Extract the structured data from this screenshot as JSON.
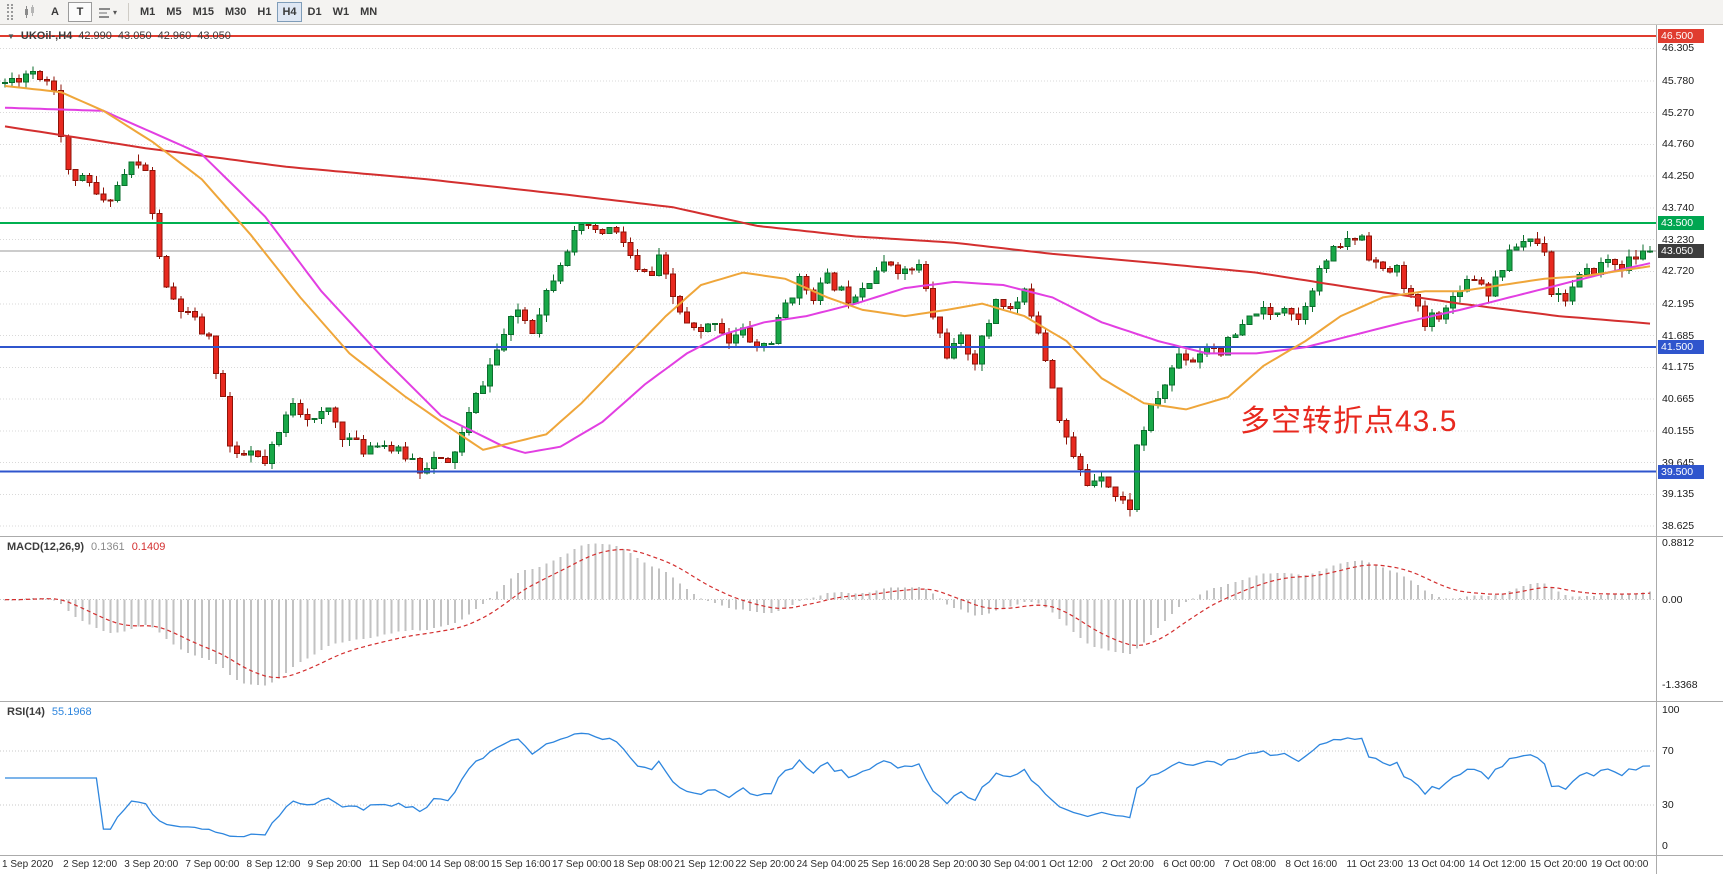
{
  "toolbar": {
    "tool_a": "A",
    "tool_t": "T",
    "timeframes": [
      "M1",
      "M5",
      "M15",
      "M30",
      "H1",
      "H4",
      "D1",
      "W1",
      "MN"
    ],
    "active_timeframe": "H4"
  },
  "chart_header": {
    "symbol": "UKOil-,H4",
    "open": "42.990",
    "high": "43.050",
    "low": "42.960",
    "close": "43.050"
  },
  "price_axis": {
    "ticks": [
      "46.305",
      "45.780",
      "45.270",
      "44.760",
      "44.250",
      "43.740",
      "43.230",
      "42.720",
      "42.195",
      "41.685",
      "41.175",
      "40.665",
      "40.155",
      "39.645",
      "39.135",
      "38.625"
    ],
    "badges": [
      {
        "label": "46.500",
        "price": 46.5,
        "color": "#e03c2f"
      },
      {
        "label": "43.500",
        "price": 43.5,
        "color": "#00a651"
      },
      {
        "label": "43.050",
        "price": 43.05,
        "color": "#3c3c3c"
      },
      {
        "label": "41.500",
        "price": 41.5,
        "color": "#2f55cd"
      },
      {
        "label": "39.500",
        "price": 39.5,
        "color": "#2f55cd"
      }
    ]
  },
  "levels": [
    {
      "price": 46.5,
      "color": "#e03c2f",
      "width": 2
    },
    {
      "price": 43.5,
      "color": "#00b050",
      "width": 2
    },
    {
      "price": 41.5,
      "color": "#2f55cd",
      "width": 2
    },
    {
      "price": 39.5,
      "color": "#2f55cd",
      "width": 2
    }
  ],
  "current_price": {
    "label": "43.050",
    "value": 43.05,
    "line_color": "#9a9a9a"
  },
  "annotation": {
    "text": "多空转折点43.5",
    "color": "#e8291f"
  },
  "macd": {
    "label": "MACD(12,26,9)",
    "value_main": "0.1361",
    "value_signal": "0.1409",
    "axis": [
      {
        "label": "0.8812",
        "value": 0.8812
      },
      {
        "label": "0.00",
        "value": 0
      },
      {
        "label": "-1.3368",
        "value": -1.3368
      }
    ]
  },
  "rsi": {
    "label": "RSI(14)",
    "value": "55.1968",
    "axis": [
      {
        "label": "100",
        "value": 100
      },
      {
        "label": "70",
        "value": 70
      },
      {
        "label": "30",
        "value": 30
      },
      {
        "label": "0",
        "value": 0
      }
    ],
    "levels": [
      70,
      30
    ]
  },
  "time_axis": [
    "1 Sep 2020",
    "2 Sep 12:00",
    "3 Sep 20:00",
    "7 Sep 00:00",
    "8 Sep 12:00",
    "9 Sep 20:00",
    "11 Sep 04:00",
    "14 Sep 08:00",
    "15 Sep 16:00",
    "17 Sep 00:00",
    "18 Sep 08:00",
    "21 Sep 12:00",
    "22 Sep 20:00",
    "24 Sep 04:00",
    "25 Sep 16:00",
    "28 Sep 20:00",
    "30 Sep 04:00",
    "1 Oct 12:00",
    "2 Oct 20:00",
    "6 Oct 00:00",
    "7 Oct 08:00",
    "8 Oct 16:00",
    "11 Oct 23:00",
    "13 Oct 04:00",
    "14 Oct 12:00",
    "15 Oct 20:00",
    "19 Oct 00:00"
  ],
  "chart_data": {
    "type": "candlestick",
    "symbol": "UKOil-",
    "timeframe": "H4",
    "bars": 235,
    "seed": 11,
    "noise": 0.1,
    "wick": 0.12,
    "price_path": [
      [
        0,
        45.75
      ],
      [
        2,
        45.85
      ],
      [
        4,
        45.95
      ],
      [
        6,
        45.8
      ],
      [
        7,
        45.7
      ],
      [
        8,
        44.9
      ],
      [
        9,
        44.3
      ],
      [
        12,
        44.1
      ],
      [
        14,
        43.8
      ],
      [
        16,
        44.1
      ],
      [
        18,
        44.45
      ],
      [
        20,
        44.35
      ],
      [
        21,
        43.6
      ],
      [
        23,
        42.4
      ],
      [
        25,
        42.1
      ],
      [
        27,
        41.9
      ],
      [
        29,
        41.6
      ],
      [
        31,
        40.7
      ],
      [
        32,
        39.9
      ],
      [
        33,
        39.7
      ],
      [
        35,
        39.8
      ],
      [
        37,
        39.6
      ],
      [
        39,
        40.1
      ],
      [
        41,
        40.65
      ],
      [
        42,
        40.5
      ],
      [
        44,
        40.3
      ],
      [
        46,
        40.5
      ],
      [
        48,
        40.1
      ],
      [
        51,
        39.85
      ],
      [
        53,
        40.0
      ],
      [
        56,
        39.8
      ],
      [
        58,
        39.7
      ],
      [
        59,
        39.55
      ],
      [
        61,
        39.7
      ],
      [
        63,
        39.6
      ],
      [
        65,
        40.1
      ],
      [
        67,
        40.7
      ],
      [
        69,
        41.2
      ],
      [
        71,
        41.7
      ],
      [
        73,
        42.1
      ],
      [
        75,
        41.8
      ],
      [
        77,
        42.4
      ],
      [
        79,
        42.9
      ],
      [
        81,
        43.3
      ],
      [
        83,
        43.45
      ],
      [
        84,
        43.3
      ],
      [
        86,
        43.4
      ],
      [
        88,
        43.2
      ],
      [
        90,
        42.7
      ],
      [
        92,
        42.65
      ],
      [
        93,
        42.9
      ],
      [
        95,
        42.3
      ],
      [
        97,
        41.85
      ],
      [
        99,
        41.7
      ],
      [
        101,
        41.95
      ],
      [
        103,
        41.6
      ],
      [
        105,
        41.75
      ],
      [
        107,
        41.5
      ],
      [
        109,
        41.6
      ],
      [
        111,
        42.2
      ],
      [
        113,
        42.55
      ],
      [
        115,
        42.35
      ],
      [
        117,
        42.6
      ],
      [
        120,
        42.3
      ],
      [
        122,
        42.5
      ],
      [
        124,
        42.75
      ],
      [
        126,
        42.85
      ],
      [
        128,
        42.7
      ],
      [
        130,
        42.8
      ],
      [
        132,
        42.0
      ],
      [
        134,
        41.4
      ],
      [
        136,
        41.6
      ],
      [
        138,
        41.3
      ],
      [
        140,
        41.9
      ],
      [
        141,
        42.3
      ],
      [
        143,
        42.1
      ],
      [
        145,
        42.35
      ],
      [
        147,
        41.8
      ],
      [
        149,
        40.9
      ],
      [
        150,
        40.4
      ],
      [
        152,
        39.7
      ],
      [
        154,
        39.3
      ],
      [
        156,
        39.5
      ],
      [
        158,
        39.1
      ],
      [
        159,
        39.0
      ],
      [
        160,
        38.95
      ],
      [
        161,
        39.9
      ],
      [
        163,
        40.5
      ],
      [
        165,
        40.9
      ],
      [
        167,
        41.4
      ],
      [
        169,
        41.3
      ],
      [
        171,
        41.55
      ],
      [
        173,
        41.45
      ],
      [
        176,
        41.8
      ],
      [
        178,
        42.1
      ],
      [
        180,
        42.0
      ],
      [
        182,
        42.2
      ],
      [
        184,
        41.95
      ],
      [
        186,
        42.5
      ],
      [
        188,
        42.9
      ],
      [
        190,
        43.15
      ],
      [
        193,
        43.3
      ],
      [
        194,
        43.0
      ],
      [
        196,
        42.7
      ],
      [
        198,
        42.75
      ],
      [
        200,
        42.3
      ],
      [
        202,
        41.85
      ],
      [
        203,
        42.0
      ],
      [
        205,
        42.1
      ],
      [
        207,
        42.5
      ],
      [
        209,
        42.65
      ],
      [
        211,
        42.4
      ],
      [
        213,
        42.8
      ],
      [
        215,
        43.15
      ],
      [
        217,
        43.25
      ],
      [
        219,
        43.1
      ],
      [
        220,
        42.4
      ],
      [
        222,
        42.3
      ],
      [
        224,
        42.6
      ],
      [
        226,
        42.75
      ],
      [
        228,
        42.9
      ],
      [
        230,
        42.8
      ],
      [
        232,
        42.95
      ],
      [
        234,
        43.05
      ]
    ],
    "ma_red": [
      [
        0,
        45.05
      ],
      [
        20,
        44.7
      ],
      [
        40,
        44.4
      ],
      [
        60,
        44.2
      ],
      [
        80,
        43.95
      ],
      [
        95,
        43.75
      ],
      [
        107,
        43.45
      ],
      [
        121,
        43.28
      ],
      [
        135,
        43.18
      ],
      [
        149,
        43.0
      ],
      [
        164,
        42.85
      ],
      [
        178,
        42.7
      ],
      [
        192,
        42.45
      ],
      [
        207,
        42.2
      ],
      [
        221,
        42.0
      ],
      [
        234,
        41.88
      ]
    ],
    "ma_magenta": [
      [
        0,
        45.35
      ],
      [
        14,
        45.3
      ],
      [
        28,
        44.6
      ],
      [
        37,
        43.6
      ],
      [
        45,
        42.4
      ],
      [
        54,
        41.3
      ],
      [
        62,
        40.4
      ],
      [
        71,
        39.9
      ],
      [
        74,
        39.8
      ],
      [
        79,
        39.9
      ],
      [
        85,
        40.3
      ],
      [
        91,
        40.9
      ],
      [
        97,
        41.4
      ],
      [
        102,
        41.7
      ],
      [
        108,
        41.9
      ],
      [
        114,
        42.0
      ],
      [
        121,
        42.2
      ],
      [
        128,
        42.45
      ],
      [
        135,
        42.55
      ],
      [
        142,
        42.5
      ],
      [
        149,
        42.3
      ],
      [
        156,
        41.9
      ],
      [
        164,
        41.6
      ],
      [
        171,
        41.4
      ],
      [
        178,
        41.4
      ],
      [
        185,
        41.5
      ],
      [
        192,
        41.7
      ],
      [
        199,
        41.9
      ],
      [
        207,
        42.1
      ],
      [
        214,
        42.3
      ],
      [
        221,
        42.5
      ],
      [
        228,
        42.7
      ],
      [
        234,
        42.85
      ]
    ],
    "ma_orange": [
      [
        0,
        45.7
      ],
      [
        8,
        45.6
      ],
      [
        14,
        45.3
      ],
      [
        21,
        44.8
      ],
      [
        28,
        44.2
      ],
      [
        35,
        43.3
      ],
      [
        42,
        42.3
      ],
      [
        49,
        41.4
      ],
      [
        57,
        40.7
      ],
      [
        64,
        40.15
      ],
      [
        68,
        39.85
      ],
      [
        77,
        40.1
      ],
      [
        82,
        40.6
      ],
      [
        88,
        41.3
      ],
      [
        94,
        42.0
      ],
      [
        99,
        42.5
      ],
      [
        105,
        42.7
      ],
      [
        111,
        42.6
      ],
      [
        117,
        42.3
      ],
      [
        122,
        42.1
      ],
      [
        128,
        42.0
      ],
      [
        134,
        42.1
      ],
      [
        139,
        42.2
      ],
      [
        145,
        42.0
      ],
      [
        151,
        41.6
      ],
      [
        156,
        41.0
      ],
      [
        162,
        40.6
      ],
      [
        168,
        40.5
      ],
      [
        174,
        40.7
      ],
      [
        179,
        41.2
      ],
      [
        185,
        41.6
      ],
      [
        190,
        42.0
      ],
      [
        196,
        42.3
      ],
      [
        202,
        42.4
      ],
      [
        207,
        42.4
      ],
      [
        213,
        42.5
      ],
      [
        219,
        42.6
      ],
      [
        225,
        42.65
      ],
      [
        234,
        42.8
      ]
    ],
    "colors": {
      "up": "#18a848",
      "up_border": "#0b6e2d",
      "down": "#e8291f",
      "down_border": "#8e1409",
      "ma_red": "#d32f2f",
      "ma_magenta": "#e23fe2",
      "ma_orange": "#efa63a",
      "macd_hist": "#c2c2c2",
      "macd_signal": "#d32f2f",
      "rsi": "#2e86de",
      "grid": "#d9d9d9"
    }
  }
}
